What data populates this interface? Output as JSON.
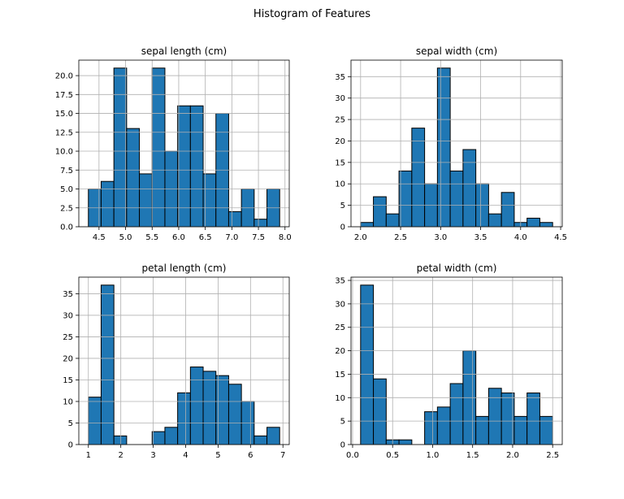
{
  "figure": {
    "title": "Histogram of Features"
  },
  "chart_data": [
    {
      "type": "bar",
      "title": "sepal length (cm)",
      "xlabel": "",
      "ylabel": "",
      "grid": true,
      "xlim": [
        4.12,
        8.08
      ],
      "ylim": [
        0,
        22.05
      ],
      "xticks": [
        4.5,
        5.0,
        5.5,
        6.0,
        6.5,
        7.0,
        7.5,
        8.0
      ],
      "xtick_labels": [
        "4.5",
        "5.0",
        "5.5",
        "6.0",
        "6.5",
        "7.0",
        "7.5",
        "8.0"
      ],
      "yticks": [
        0,
        2.5,
        5,
        7.5,
        10,
        12.5,
        15,
        17.5,
        20
      ],
      "ytick_labels": [
        "0.0",
        "2.5",
        "5.0",
        "7.5",
        "10.0",
        "12.5",
        "15.0",
        "17.5",
        "20.0"
      ],
      "bin_edges": [
        4.3,
        4.54,
        4.78,
        5.02,
        5.26,
        5.5,
        5.74,
        5.98,
        6.22,
        6.46,
        6.7,
        6.94,
        7.18,
        7.42,
        7.66,
        7.9
      ],
      "counts": [
        5,
        6,
        21,
        13,
        7,
        21,
        10,
        16,
        16,
        7,
        15,
        2,
        5,
        1,
        5
      ],
      "color": "#1f77b4"
    },
    {
      "type": "bar",
      "title": "sepal width (cm)",
      "xlabel": "",
      "ylabel": "",
      "grid": true,
      "xlim": [
        1.88,
        4.52
      ],
      "ylim": [
        0,
        38.85
      ],
      "xticks": [
        2.0,
        2.5,
        3.0,
        3.5,
        4.0,
        4.5
      ],
      "xtick_labels": [
        "2.0",
        "2.5",
        "3.0",
        "3.5",
        "4.0",
        "4.5"
      ],
      "yticks": [
        0,
        5,
        10,
        15,
        20,
        25,
        30,
        35
      ],
      "ytick_labels": [
        "0",
        "5",
        "10",
        "15",
        "20",
        "25",
        "30",
        "35"
      ],
      "bin_edges": [
        2.0,
        2.16,
        2.32,
        2.48,
        2.64,
        2.8,
        2.96,
        3.12,
        3.28,
        3.44,
        3.6,
        3.76,
        3.92,
        4.08,
        4.24,
        4.4
      ],
      "counts": [
        1,
        7,
        3,
        13,
        23,
        10,
        37,
        13,
        18,
        10,
        3,
        8,
        1,
        2,
        1
      ],
      "color": "#1f77b4"
    },
    {
      "type": "bar",
      "title": "petal length (cm)",
      "xlabel": "",
      "ylabel": "",
      "grid": true,
      "xlim": [
        0.705,
        7.195
      ],
      "ylim": [
        0,
        38.85
      ],
      "xticks": [
        1,
        2,
        3,
        4,
        5,
        6,
        7
      ],
      "xtick_labels": [
        "1",
        "2",
        "3",
        "4",
        "5",
        "6",
        "7"
      ],
      "yticks": [
        0,
        5,
        10,
        15,
        20,
        25,
        30,
        35
      ],
      "ytick_labels": [
        "0",
        "5",
        "10",
        "15",
        "20",
        "25",
        "30",
        "35"
      ],
      "bin_edges": [
        1.0,
        1.393,
        1.787,
        2.18,
        2.573,
        2.967,
        3.36,
        3.753,
        4.147,
        4.54,
        4.933,
        5.327,
        5.72,
        6.113,
        6.507,
        6.9
      ],
      "counts": [
        11,
        37,
        2,
        0,
        0,
        3,
        4,
        12,
        18,
        17,
        16,
        14,
        10,
        2,
        4
      ],
      "color": "#1f77b4"
    },
    {
      "type": "bar",
      "title": "petal width (cm)",
      "xlabel": "",
      "ylabel": "",
      "grid": true,
      "xlim": [
        -0.02,
        2.62
      ],
      "ylim": [
        0,
        35.7
      ],
      "xticks": [
        0.0,
        0.5,
        1.0,
        1.5,
        2.0,
        2.5
      ],
      "xtick_labels": [
        "0.0",
        "0.5",
        "1.0",
        "1.5",
        "2.0",
        "2.5"
      ],
      "yticks": [
        0,
        5,
        10,
        15,
        20,
        25,
        30,
        35
      ],
      "ytick_labels": [
        "0",
        "5",
        "10",
        "15",
        "20",
        "25",
        "30",
        "35"
      ],
      "bin_edges": [
        0.1,
        0.26,
        0.42,
        0.58,
        0.74,
        0.9,
        1.06,
        1.22,
        1.38,
        1.54,
        1.7,
        1.86,
        2.02,
        2.18,
        2.34,
        2.5
      ],
      "counts": [
        34,
        14,
        1,
        1,
        0,
        7,
        8,
        13,
        20,
        6,
        12,
        11,
        6,
        11,
        6
      ],
      "color": "#1f77b4"
    }
  ]
}
